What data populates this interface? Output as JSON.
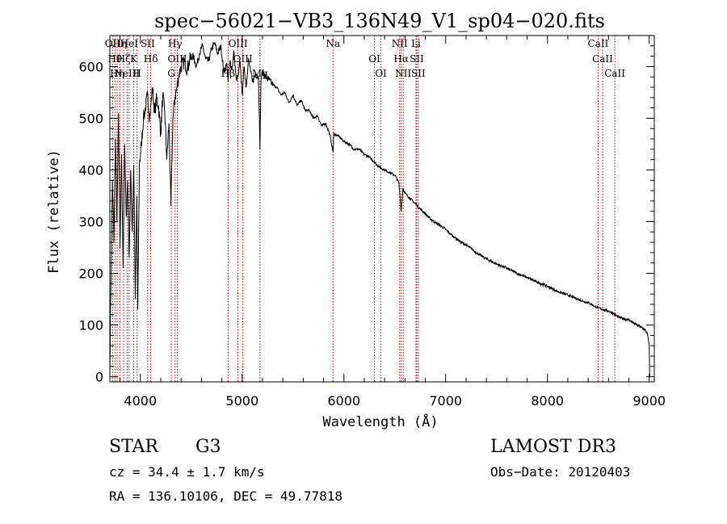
{
  "chart_data": {
    "type": "line",
    "title": "spec−56021−VB3_136N49_V1_sp04−020.fits",
    "xlabel": "Wavelength (Å)",
    "ylabel": "Flux (relative)",
    "xlim": [
      3700,
      9050
    ],
    "ylim": [
      -10,
      660
    ],
    "xticks": [
      4000,
      5000,
      6000,
      7000,
      8000,
      9000
    ],
    "yticks": [
      0,
      100,
      200,
      300,
      400,
      500,
      600
    ],
    "xtick_labels": [
      "4000",
      "5000",
      "6000",
      "7000",
      "8000",
      "9000"
    ],
    "ytick_labels": [
      "0",
      "100",
      "200",
      "300",
      "400",
      "500",
      "600"
    ],
    "series": [
      {
        "name": "flux",
        "x": [
          3700,
          3710,
          3725,
          3740,
          3755,
          3770,
          3785,
          3800,
          3815,
          3830,
          3845,
          3860,
          3875,
          3890,
          3905,
          3920,
          3935,
          3950,
          3965,
          3975,
          3990,
          4010,
          4030,
          4050,
          4070,
          4090,
          4105,
          4120,
          4140,
          4160,
          4180,
          4200,
          4220,
          4240,
          4260,
          4280,
          4300,
          4320,
          4340,
          4360,
          4380,
          4400,
          4430,
          4460,
          4490,
          4520,
          4550,
          4580,
          4610,
          4640,
          4670,
          4700,
          4730,
          4760,
          4790,
          4820,
          4850,
          4862,
          4880,
          4900,
          4920,
          4940,
          4960,
          4980,
          5000,
          5020,
          5040,
          5060,
          5080,
          5100,
          5130,
          5160,
          5175,
          5185,
          5200,
          5230,
          5260,
          5300,
          5340,
          5380,
          5420,
          5460,
          5500,
          5540,
          5580,
          5620,
          5660,
          5700,
          5740,
          5780,
          5820,
          5860,
          5893,
          5900,
          5950,
          6000,
          6050,
          6100,
          6150,
          6200,
          6250,
          6300,
          6350,
          6400,
          6450,
          6500,
          6540,
          6563,
          6580,
          6600,
          6650,
          6700,
          6750,
          6800,
          6850,
          6900,
          6950,
          7000,
          7050,
          7100,
          7150,
          7200,
          7250,
          7300,
          7400,
          7500,
          7600,
          7700,
          7800,
          7900,
          8000,
          8100,
          8200,
          8300,
          8400,
          8450,
          8500,
          8550,
          8600,
          8650,
          8700,
          8750,
          8800,
          8850,
          8900,
          8950,
          8980,
          9000,
          9005
        ],
        "values": [
          10,
          170,
          380,
          260,
          460,
          300,
          510,
          250,
          430,
          210,
          450,
          310,
          380,
          230,
          400,
          280,
          410,
          150,
          350,
          130,
          410,
          450,
          500,
          520,
          545,
          500,
          530,
          560,
          510,
          540,
          520,
          470,
          545,
          510,
          420,
          490,
          330,
          500,
          540,
          560,
          585,
          600,
          610,
          595,
          615,
          620,
          600,
          625,
          640,
          615,
          610,
          635,
          645,
          625,
          640,
          590,
          605,
          570,
          610,
          595,
          630,
          575,
          580,
          610,
          545,
          600,
          560,
          615,
          595,
          570,
          585,
          580,
          440,
          575,
          590,
          580,
          575,
          565,
          560,
          545,
          550,
          530,
          545,
          525,
          535,
          515,
          515,
          500,
          505,
          485,
          490,
          470,
          435,
          470,
          465,
          455,
          450,
          440,
          440,
          430,
          425,
          415,
          405,
          400,
          395,
          390,
          375,
          320,
          365,
          355,
          345,
          335,
          325,
          315,
          305,
          298,
          292,
          285,
          275,
          268,
          260,
          255,
          248,
          240,
          228,
          218,
          210,
          200,
          192,
          183,
          175,
          165,
          158,
          150,
          143,
          138,
          133,
          130,
          127,
          122,
          115,
          112,
          110,
          103,
          98,
          92,
          85,
          60,
          0
        ]
      }
    ],
    "lines": [
      {
        "wavelength": 3727,
        "label": "OII"
      },
      {
        "wavelength": 3750,
        "label": "Hθ"
      },
      {
        "wavelength": 3771,
        "label": "Hη"
      },
      {
        "wavelength": 3798,
        "label": "Hη"
      },
      {
        "wavelength": 3835,
        "label": "Hζ"
      },
      {
        "wavelength": 3869,
        "label": "NeIII"
      },
      {
        "wavelength": 3889,
        "label": "HeI"
      },
      {
        "wavelength": 3934,
        "label": "K"
      },
      {
        "wavelength": 3968,
        "label": "H"
      },
      {
        "wavelength": 4072,
        "label": "SII"
      },
      {
        "wavelength": 4102,
        "label": "Hδ"
      },
      {
        "wavelength": 4304,
        "label": "G"
      },
      {
        "wavelength": 4341,
        "label": "Hγ"
      },
      {
        "wavelength": 4363,
        "label": "OIII"
      },
      {
        "wavelength": 4862,
        "label": "Hβ"
      },
      {
        "wavelength": 4959,
        "label": "OIII"
      },
      {
        "wavelength": 5007,
        "label": "OIII"
      },
      {
        "wavelength": 5175,
        "label": "Mg"
      },
      {
        "wavelength": 5893,
        "label": "Na"
      },
      {
        "wavelength": 6300,
        "label": "OI"
      },
      {
        "wavelength": 6364,
        "label": "OI"
      },
      {
        "wavelength": 6548,
        "label": "NII"
      },
      {
        "wavelength": 6563,
        "label": "Hα"
      },
      {
        "wavelength": 6583,
        "label": "NII"
      },
      {
        "wavelength": 6708,
        "label": "Li"
      },
      {
        "wavelength": 6716,
        "label": "SII"
      },
      {
        "wavelength": 6731,
        "label": "SII"
      },
      {
        "wavelength": 8498,
        "label": "CaII"
      },
      {
        "wavelength": 8542,
        "label": "CaII"
      },
      {
        "wavelength": 8662,
        "label": "CaII"
      }
    ],
    "grid": false,
    "legend": "none"
  },
  "info": {
    "object_class": "STAR",
    "subclass": "G3",
    "survey": "LAMOST DR3",
    "velocity": "cz = 34.4 ± 1.7 km/s",
    "obs_date": "Obs−Date: 20120403",
    "coords": "RA = 136.10106, DEC =  49.77818"
  },
  "colors": {
    "spectrum": "#000000",
    "line_marker": "#c00000",
    "axis": "#000000"
  }
}
